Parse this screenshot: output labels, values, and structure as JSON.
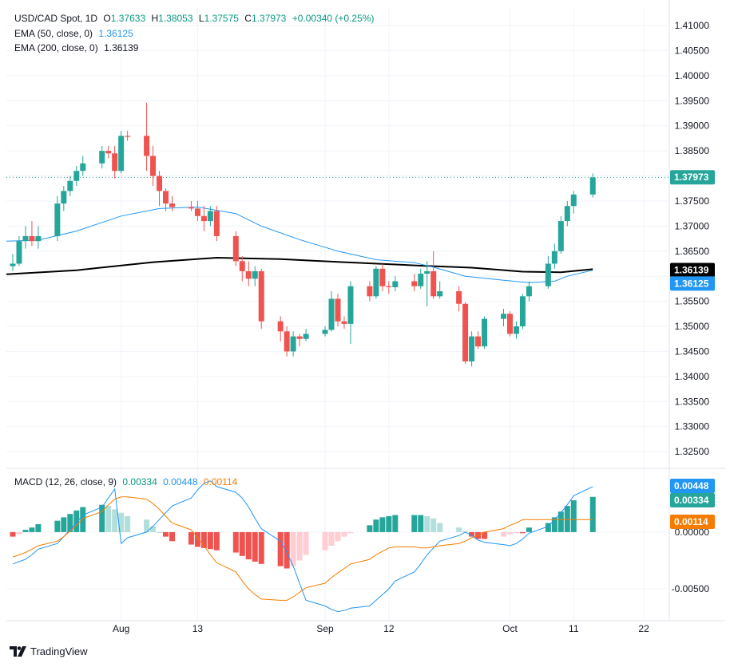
{
  "header": {
    "symbol": "USD/CAD Spot, 1D",
    "open_label": "O",
    "open": "1.37633",
    "high_label": "H",
    "high": "1.38053",
    "low_label": "L",
    "low": "1.37575",
    "close_label": "C",
    "close": "1.37973",
    "change": "+0.00340 (+0.25%)",
    "ema50_label": "EMA (50, close, 0)",
    "ema50_value": "1.36125",
    "ema200_label": "EMA (200, close, 0)",
    "ema200_value": "1.36139",
    "macd_label": "MACD (12, 26, close, 9)",
    "macd_hist_value": "0.00334",
    "macd_line_value": "0.00448",
    "macd_signal_value": "0.00114"
  },
  "badges": {
    "price": "1.37973",
    "ema200": "1.36139",
    "ema50": "1.36125",
    "macd_line": "0.00448",
    "macd_hist": "0.00334",
    "macd_signal": "0.00114"
  },
  "footer": {
    "brand": "TradingView"
  },
  "colors": {
    "up": "#26a69a",
    "down": "#ef5350",
    "ema50": "#2196f3",
    "ema200": "#000000",
    "macd": "#2196f3",
    "signal": "#f57c00",
    "hist_up_strong": "#26a69a",
    "hist_up_weak": "#b2dfdb",
    "hist_down_strong": "#ef5350",
    "hist_down_weak": "#ffcdd2"
  },
  "chart_data": [
    {
      "type": "candlestick",
      "title": "USD/CAD Spot, 1D",
      "ylim": [
        1.322,
        1.4135
      ],
      "y_ticks": [
        "1.41000",
        "1.40500",
        "1.40000",
        "1.39500",
        "1.39000",
        "1.38500",
        "1.38000",
        "1.37500",
        "1.37000",
        "1.36500",
        "1.36000",
        "1.35500",
        "1.35000",
        "1.34500",
        "1.34000",
        "1.33500",
        "1.33000",
        "1.32500"
      ],
      "x_ticks": [
        {
          "label": "Aug",
          "date": "2024-08-01"
        },
        {
          "label": "13",
          "date": "2024-08-13"
        },
        {
          "label": "Sep",
          "date": "2024-09-02"
        },
        {
          "label": "12",
          "date": "2024-09-12"
        },
        {
          "label": "Oct",
          "date": "2024-10-01"
        },
        {
          "label": "11",
          "date": "2024-10-11"
        },
        {
          "label": "22",
          "date": "2024-10-22"
        }
      ],
      "x_range": [
        "2024-07-14",
        "2024-10-26"
      ],
      "candles": [
        {
          "date": "2024-07-15",
          "o": 1.362,
          "h": 1.3645,
          "l": 1.361,
          "c": 1.3625
        },
        {
          "date": "2024-07-16",
          "o": 1.3625,
          "h": 1.368,
          "l": 1.362,
          "c": 1.367
        },
        {
          "date": "2024-07-17",
          "o": 1.367,
          "h": 1.37,
          "l": 1.3655,
          "c": 1.368
        },
        {
          "date": "2024-07-18",
          "o": 1.368,
          "h": 1.371,
          "l": 1.366,
          "c": 1.367
        },
        {
          "date": "2024-07-19",
          "o": 1.367,
          "h": 1.37,
          "l": 1.3655,
          "c": 1.368
        },
        {
          "date": "2024-07-22",
          "o": 1.368,
          "h": 1.376,
          "l": 1.367,
          "c": 1.3745
        },
        {
          "date": "2024-07-23",
          "o": 1.3745,
          "h": 1.378,
          "l": 1.373,
          "c": 1.377
        },
        {
          "date": "2024-07-24",
          "o": 1.377,
          "h": 1.38,
          "l": 1.376,
          "c": 1.379
        },
        {
          "date": "2024-07-25",
          "o": 1.379,
          "h": 1.382,
          "l": 1.378,
          "c": 1.381
        },
        {
          "date": "2024-07-26",
          "o": 1.381,
          "h": 1.384,
          "l": 1.38,
          "c": 1.3825
        },
        {
          "date": "2024-07-29",
          "o": 1.3825,
          "h": 1.386,
          "l": 1.3815,
          "c": 1.385
        },
        {
          "date": "2024-07-30",
          "o": 1.385,
          "h": 1.386,
          "l": 1.3835,
          "c": 1.3845
        },
        {
          "date": "2024-07-31",
          "o": 1.3845,
          "h": 1.386,
          "l": 1.3795,
          "c": 1.381
        },
        {
          "date": "2024-08-01",
          "o": 1.381,
          "h": 1.389,
          "l": 1.3805,
          "c": 1.388
        },
        {
          "date": "2024-08-02",
          "o": 1.388,
          "h": 1.389,
          "l": 1.387,
          "c": 1.3878
        },
        {
          "date": "2024-08-05",
          "o": 1.388,
          "h": 1.3946,
          "l": 1.381,
          "c": 1.384
        },
        {
          "date": "2024-08-06",
          "o": 1.384,
          "h": 1.386,
          "l": 1.378,
          "c": 1.38
        },
        {
          "date": "2024-08-07",
          "o": 1.38,
          "h": 1.381,
          "l": 1.374,
          "c": 1.377
        },
        {
          "date": "2024-08-08",
          "o": 1.377,
          "h": 1.3775,
          "l": 1.373,
          "c": 1.3745
        },
        {
          "date": "2024-08-09",
          "o": 1.3745,
          "h": 1.376,
          "l": 1.373,
          "c": 1.3738
        },
        {
          "date": "2024-08-12",
          "o": 1.3738,
          "h": 1.375,
          "l": 1.373,
          "c": 1.3735
        },
        {
          "date": "2024-08-13",
          "o": 1.3735,
          "h": 1.375,
          "l": 1.371,
          "c": 1.372
        },
        {
          "date": "2024-08-14",
          "o": 1.372,
          "h": 1.374,
          "l": 1.369,
          "c": 1.371
        },
        {
          "date": "2024-08-15",
          "o": 1.371,
          "h": 1.374,
          "l": 1.37,
          "c": 1.373
        },
        {
          "date": "2024-08-16",
          "o": 1.373,
          "h": 1.374,
          "l": 1.367,
          "c": 1.368
        },
        {
          "date": "2024-08-19",
          "o": 1.368,
          "h": 1.369,
          "l": 1.362,
          "c": 1.363
        },
        {
          "date": "2024-08-20",
          "o": 1.363,
          "h": 1.364,
          "l": 1.359,
          "c": 1.361
        },
        {
          "date": "2024-08-21",
          "o": 1.361,
          "h": 1.363,
          "l": 1.358,
          "c": 1.3595
        },
        {
          "date": "2024-08-22",
          "o": 1.3595,
          "h": 1.362,
          "l": 1.358,
          "c": 1.361
        },
        {
          "date": "2024-08-23",
          "o": 1.361,
          "h": 1.3615,
          "l": 1.3495,
          "c": 1.351
        },
        {
          "date": "2024-08-26",
          "o": 1.351,
          "h": 1.352,
          "l": 1.347,
          "c": 1.349
        },
        {
          "date": "2024-08-27",
          "o": 1.349,
          "h": 1.35,
          "l": 1.344,
          "c": 1.345
        },
        {
          "date": "2024-08-28",
          "o": 1.345,
          "h": 1.349,
          "l": 1.344,
          "c": 1.348
        },
        {
          "date": "2024-08-29",
          "o": 1.348,
          "h": 1.3485,
          "l": 1.346,
          "c": 1.3475
        },
        {
          "date": "2024-08-30",
          "o": 1.3475,
          "h": 1.3495,
          "l": 1.347,
          "c": 1.3485
        },
        {
          "date": "2024-09-02",
          "o": 1.3485,
          "h": 1.35,
          "l": 1.348,
          "c": 1.3493
        },
        {
          "date": "2024-09-03",
          "o": 1.3493,
          "h": 1.357,
          "l": 1.349,
          "c": 1.3555
        },
        {
          "date": "2024-09-04",
          "o": 1.3555,
          "h": 1.3565,
          "l": 1.35,
          "c": 1.351
        },
        {
          "date": "2024-09-05",
          "o": 1.351,
          "h": 1.352,
          "l": 1.3495,
          "c": 1.3505
        },
        {
          "date": "2024-09-06",
          "o": 1.3505,
          "h": 1.359,
          "l": 1.3465,
          "c": 1.358
        },
        {
          "date": "2024-09-09",
          "o": 1.358,
          "h": 1.359,
          "l": 1.355,
          "c": 1.356
        },
        {
          "date": "2024-09-10",
          "o": 1.356,
          "h": 1.362,
          "l": 1.3555,
          "c": 1.3615
        },
        {
          "date": "2024-09-11",
          "o": 1.3615,
          "h": 1.3625,
          "l": 1.357,
          "c": 1.358
        },
        {
          "date": "2024-09-12",
          "o": 1.358,
          "h": 1.359,
          "l": 1.3565,
          "c": 1.3578
        },
        {
          "date": "2024-09-13",
          "o": 1.3578,
          "h": 1.36,
          "l": 1.357,
          "c": 1.359
        },
        {
          "date": "2024-09-16",
          "o": 1.359,
          "h": 1.3605,
          "l": 1.357,
          "c": 1.358
        },
        {
          "date": "2024-09-17",
          "o": 1.358,
          "h": 1.3615,
          "l": 1.3575,
          "c": 1.3605
        },
        {
          "date": "2024-09-18",
          "o": 1.3605,
          "h": 1.363,
          "l": 1.354,
          "c": 1.361
        },
        {
          "date": "2024-09-19",
          "o": 1.361,
          "h": 1.365,
          "l": 1.3555,
          "c": 1.356
        },
        {
          "date": "2024-09-20",
          "o": 1.356,
          "h": 1.359,
          "l": 1.3555,
          "c": 1.357
        },
        {
          "date": "2024-09-23",
          "o": 1.357,
          "h": 1.358,
          "l": 1.353,
          "c": 1.3545
        },
        {
          "date": "2024-09-24",
          "o": 1.3545,
          "h": 1.3548,
          "l": 1.3425,
          "c": 1.343
        },
        {
          "date": "2024-09-25",
          "o": 1.343,
          "h": 1.349,
          "l": 1.342,
          "c": 1.348
        },
        {
          "date": "2024-09-26",
          "o": 1.348,
          "h": 1.349,
          "l": 1.3455,
          "c": 1.346
        },
        {
          "date": "2024-09-27",
          "o": 1.346,
          "h": 1.352,
          "l": 1.3455,
          "c": 1.3515
        },
        {
          "date": "2024-09-30",
          "o": 1.3515,
          "h": 1.3535,
          "l": 1.35,
          "c": 1.3525
        },
        {
          "date": "2024-10-01",
          "o": 1.3525,
          "h": 1.353,
          "l": 1.348,
          "c": 1.3485
        },
        {
          "date": "2024-10-02",
          "o": 1.3485,
          "h": 1.351,
          "l": 1.3475,
          "c": 1.35
        },
        {
          "date": "2024-10-03",
          "o": 1.35,
          "h": 1.3565,
          "l": 1.3495,
          "c": 1.356
        },
        {
          "date": "2024-10-04",
          "o": 1.356,
          "h": 1.359,
          "l": 1.355,
          "c": 1.358
        },
        {
          "date": "2024-10-07",
          "o": 1.358,
          "h": 1.364,
          "l": 1.3575,
          "c": 1.3625
        },
        {
          "date": "2024-10-08",
          "o": 1.3625,
          "h": 1.3665,
          "l": 1.3615,
          "c": 1.365
        },
        {
          "date": "2024-10-09",
          "o": 1.365,
          "h": 1.372,
          "l": 1.3645,
          "c": 1.371
        },
        {
          "date": "2024-10-10",
          "o": 1.371,
          "h": 1.375,
          "l": 1.37,
          "c": 1.374
        },
        {
          "date": "2024-10-11",
          "o": 1.374,
          "h": 1.377,
          "l": 1.3725,
          "c": 1.3763
        },
        {
          "date": "2024-10-14",
          "o": 1.3763,
          "h": 1.3805,
          "l": 1.3757,
          "c": 1.3797
        }
      ],
      "ema50": [
        [
          0,
          1.367
        ],
        [
          4,
          1.3672
        ],
        [
          8,
          1.369
        ],
        [
          13,
          1.372
        ],
        [
          17,
          1.3735
        ],
        [
          21,
          1.3738
        ],
        [
          25,
          1.3725
        ],
        [
          29,
          1.37
        ],
        [
          33,
          1.3673
        ],
        [
          37,
          1.365
        ],
        [
          41,
          1.3633
        ],
        [
          45,
          1.3627
        ],
        [
          48,
          1.3618
        ],
        [
          51,
          1.36
        ],
        [
          55,
          1.3592
        ],
        [
          59,
          1.3587
        ],
        [
          61,
          1.359
        ],
        [
          63,
          1.36
        ],
        [
          65,
          1.3612
        ]
      ],
      "ema200": [
        [
          0,
          1.3604
        ],
        [
          8,
          1.3612
        ],
        [
          16,
          1.3628
        ],
        [
          24,
          1.3637
        ],
        [
          30,
          1.3634
        ],
        [
          38,
          1.3628
        ],
        [
          46,
          1.3621
        ],
        [
          52,
          1.3617
        ],
        [
          58,
          1.3609
        ],
        [
          62,
          1.3608
        ],
        [
          65,
          1.3614
        ]
      ]
    },
    {
      "type": "macd",
      "title": "MACD (12, 26, close, 9)",
      "ylim": [
        -0.0078,
        0.0054
      ],
      "y_ticks": [
        "0.00000",
        "-0.00500"
      ],
      "hist": [
        -0.0004,
        -0.0002,
        0.0002,
        0.0004,
        0.0007,
        0.001,
        0.0013,
        0.0016,
        0.0019,
        0.0022,
        0.0024,
        0.0023,
        0.002,
        0.0017,
        0.0014,
        0.0011,
        0.0005,
        0.0,
        -0.0004,
        -0.0008,
        -0.0011,
        -0.0013,
        -0.0014,
        -0.0015,
        -0.0016,
        -0.0018,
        -0.0021,
        -0.0024,
        -0.0026,
        -0.0028,
        -0.003,
        -0.0032,
        -0.003,
        -0.0025,
        -0.002,
        -0.0016,
        -0.0012,
        -0.0008,
        -0.0004,
        -0.0001,
        0.0006,
        0.0011,
        0.0013,
        0.0014,
        0.0015,
        0.0015,
        0.0015,
        0.0014,
        0.0012,
        0.0008,
        0.0004,
        0.0001,
        -0.0004,
        -0.0006,
        -0.0006,
        -0.0004,
        -0.0002,
        -0.0001,
        -0.0001,
        0.0004,
        0.0008,
        0.0013,
        0.0018,
        0.0023,
        0.0028,
        0.0031,
        0.0033
      ],
      "macd": [
        -0.0015,
        -0.001,
        -0.0005,
        0.0,
        0.0005,
        0.0011,
        0.0017,
        0.0023,
        0.003,
        0.0037,
        0.0043,
        0.0045,
        0.004,
        0.0035,
        0.003,
        0.0022,
        0.0012,
        0.0003,
        -0.0008,
        -0.0018,
        -0.003,
        -0.0045,
        -0.006,
        -0.0065,
        -0.0068,
        -0.007,
        -0.0069,
        -0.0067,
        -0.0065,
        -0.006,
        -0.0055,
        -0.005,
        -0.0043,
        -0.0035,
        -0.0028,
        -0.002,
        -0.0014,
        -0.0008,
        -0.0003,
        0.0,
        -0.0003,
        -0.0007,
        -0.0009,
        -0.0011,
        -0.0012,
        -0.001,
        -0.0006,
        -0.0001,
        0.0005,
        0.0011,
        0.0017,
        0.0024,
        0.0032,
        0.004,
        0.0045
      ],
      "macd_x_start": 12,
      "macd_early": [
        -0.0028,
        -0.0026,
        -0.0024,
        -0.002,
        -0.0015,
        -0.001,
        -0.0004,
        0.0002,
        0.0008,
        0.0015,
        0.0022,
        0.003,
        0.0038
      ],
      "signal": [
        -0.0022,
        -0.002,
        -0.0018,
        -0.0015,
        -0.0012,
        -0.0008,
        -0.0004,
        0.0001,
        0.0006,
        0.0012,
        0.0018,
        0.0024,
        0.0029,
        0.0031,
        0.0031,
        0.0029,
        0.0025,
        0.002,
        0.0014,
        0.0008,
        0.0002,
        -0.0005,
        -0.0012,
        -0.002,
        -0.0027,
        -0.0035,
        -0.0043,
        -0.005,
        -0.0055,
        -0.0059,
        -0.006,
        -0.006,
        -0.0057,
        -0.0053,
        -0.0049,
        -0.0045,
        -0.004,
        -0.0036,
        -0.0032,
        -0.0028,
        -0.0024,
        -0.002,
        -0.0017,
        -0.0014,
        -0.0013,
        -0.0013,
        -0.0014,
        -0.0014,
        -0.0013,
        -0.0012,
        -0.001,
        -0.0008,
        -0.0005,
        -0.0003,
        0.0,
        0.0003,
        0.0006,
        0.0008,
        0.0011,
        0.0011,
        0.0011,
        0.0011,
        0.0011,
        0.0011,
        0.0011,
        0.0011,
        0.0011
      ]
    }
  ]
}
